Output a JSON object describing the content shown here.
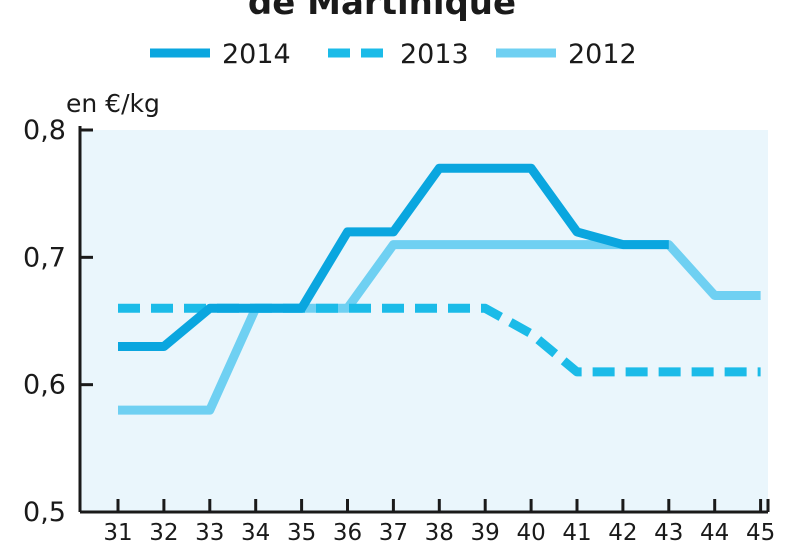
{
  "chart_data": {
    "type": "line",
    "title": "de Martinique",
    "ylabel": "en €/kg",
    "xlabel": "",
    "x": [
      31,
      32,
      33,
      34,
      35,
      36,
      37,
      38,
      39,
      40,
      41,
      42,
      43,
      44,
      45
    ],
    "x_tick_labels": [
      "31",
      "32",
      "33",
      "34",
      "35",
      "36",
      "37",
      "38",
      "39",
      "40",
      "41",
      "42",
      "43",
      "44",
      "45"
    ],
    "y_tick_labels": [
      "0,5",
      "0,6",
      "0,7",
      "0,8"
    ],
    "y_ticks": [
      0.5,
      0.6,
      0.7,
      0.8
    ],
    "ylim": [
      0.5,
      0.8
    ],
    "grid": false,
    "legend_position": "top",
    "series": [
      {
        "name": "2014",
        "style": "solid",
        "color": "#0aa6df",
        "values": [
          0.63,
          0.63,
          0.66,
          0.66,
          0.66,
          0.72,
          0.72,
          0.77,
          0.77,
          0.77,
          0.72,
          0.71,
          0.71,
          null,
          null
        ]
      },
      {
        "name": "2013",
        "style": "dashed",
        "color": "#1bbbe8",
        "values": [
          0.66,
          0.66,
          0.66,
          0.66,
          0.66,
          0.66,
          0.66,
          0.66,
          0.66,
          0.64,
          0.61,
          0.61,
          0.61,
          0.61,
          0.61
        ]
      },
      {
        "name": "2012",
        "style": "solid",
        "color": "#6fd0f2",
        "values": [
          0.58,
          0.58,
          0.58,
          0.66,
          0.66,
          0.66,
          0.71,
          0.71,
          0.71,
          0.71,
          0.71,
          0.71,
          0.71,
          0.67,
          0.67
        ]
      }
    ],
    "plot_background": "#eaf6fc",
    "axis_color": "#1a1a1a"
  }
}
